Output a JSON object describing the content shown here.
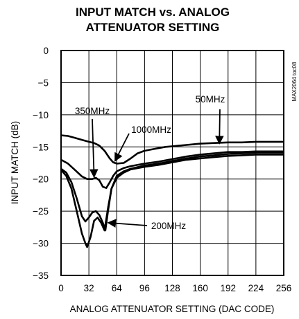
{
  "chart_data": {
    "type": "line",
    "title": [
      "INPUT MATCH vs. ANALOG",
      "ATTENUATOR SETTING"
    ],
    "xlabel": "ANALOG ATTENUATOR SETTING (DAC CODE)",
    "ylabel": "INPUT MATCH (dB)",
    "xlim": [
      0,
      256
    ],
    "ylim": [
      -35,
      0
    ],
    "xticks": [
      0,
      32,
      64,
      96,
      128,
      160,
      192,
      224,
      256
    ],
    "yticks": [
      0,
      -5,
      -10,
      -15,
      -20,
      -25,
      -30,
      -35
    ],
    "grid": true,
    "figure_code": "MAX2064 toc08",
    "series": [
      {
        "name": "50MHz",
        "points": [
          [
            0,
            -13.2
          ],
          [
            8,
            -13.3
          ],
          [
            16,
            -13.6
          ],
          [
            24,
            -13.9
          ],
          [
            32,
            -14.2
          ],
          [
            38,
            -14.4
          ],
          [
            44,
            -14.8
          ],
          [
            50,
            -15.6
          ],
          [
            56,
            -16.8
          ],
          [
            60,
            -17.4
          ],
          [
            64,
            -17.6
          ],
          [
            72,
            -17.5
          ],
          [
            80,
            -16.8
          ],
          [
            88,
            -16.0
          ],
          [
            96,
            -15.6
          ],
          [
            104,
            -15.4
          ],
          [
            112,
            -15.2
          ],
          [
            120,
            -15.0
          ],
          [
            128,
            -14.9
          ],
          [
            136,
            -14.8
          ],
          [
            144,
            -14.7
          ],
          [
            152,
            -14.6
          ],
          [
            160,
            -14.5
          ],
          [
            176,
            -14.4
          ],
          [
            192,
            -14.3
          ],
          [
            208,
            -14.3
          ],
          [
            224,
            -14.2
          ],
          [
            240,
            -14.2
          ],
          [
            256,
            -14.2
          ]
        ]
      },
      {
        "name": "1000MHz",
        "points": [
          [
            0,
            -17.0
          ],
          [
            8,
            -17.6
          ],
          [
            16,
            -18.6
          ],
          [
            24,
            -19.6
          ],
          [
            30,
            -20.0
          ],
          [
            36,
            -20.0
          ],
          [
            40,
            -19.8
          ],
          [
            44,
            -20.2
          ],
          [
            48,
            -21.2
          ],
          [
            52,
            -21.4
          ],
          [
            56,
            -20.5
          ],
          [
            60,
            -19.5
          ],
          [
            64,
            -18.8
          ],
          [
            72,
            -18.3
          ],
          [
            80,
            -18.0
          ],
          [
            96,
            -17.6
          ],
          [
            112,
            -17.3
          ],
          [
            128,
            -16.9
          ],
          [
            144,
            -16.5
          ],
          [
            160,
            -16.2
          ],
          [
            176,
            -16.0
          ],
          [
            192,
            -15.8
          ],
          [
            208,
            -15.8
          ],
          [
            224,
            -15.7
          ],
          [
            240,
            -15.7
          ],
          [
            256,
            -15.7
          ]
        ]
      },
      {
        "name": "350MHz",
        "points": [
          [
            0,
            -18.4
          ],
          [
            6,
            -19.0
          ],
          [
            12,
            -20.5
          ],
          [
            18,
            -23.0
          ],
          [
            24,
            -25.8
          ],
          [
            28,
            -26.6
          ],
          [
            32,
            -26.0
          ],
          [
            36,
            -25.2
          ],
          [
            40,
            -25.0
          ],
          [
            44,
            -25.6
          ],
          [
            48,
            -26.8
          ],
          [
            51,
            -28.0
          ],
          [
            54,
            -25.0
          ],
          [
            58,
            -21.5
          ],
          [
            64,
            -19.5
          ],
          [
            72,
            -18.8
          ],
          [
            80,
            -18.4
          ],
          [
            96,
            -17.9
          ],
          [
            112,
            -17.6
          ],
          [
            128,
            -17.2
          ],
          [
            144,
            -16.8
          ],
          [
            160,
            -16.5
          ],
          [
            176,
            -16.3
          ],
          [
            192,
            -16.1
          ],
          [
            208,
            -16.0
          ],
          [
            224,
            -15.9
          ],
          [
            240,
            -15.9
          ],
          [
            256,
            -15.9
          ]
        ]
      },
      {
        "name": "200MHz",
        "points": [
          [
            0,
            -18.6
          ],
          [
            6,
            -19.5
          ],
          [
            12,
            -21.5
          ],
          [
            18,
            -25.0
          ],
          [
            24,
            -28.5
          ],
          [
            28,
            -30.0
          ],
          [
            30,
            -30.6
          ],
          [
            34,
            -29.0
          ],
          [
            38,
            -26.5
          ],
          [
            42,
            -26.0
          ],
          [
            46,
            -26.8
          ],
          [
            50,
            -28.0
          ],
          [
            54,
            -24.5
          ],
          [
            58,
            -21.5
          ],
          [
            64,
            -19.8
          ],
          [
            72,
            -19.0
          ],
          [
            80,
            -18.5
          ],
          [
            96,
            -18.1
          ],
          [
            112,
            -17.8
          ],
          [
            128,
            -17.4
          ],
          [
            144,
            -17.0
          ],
          [
            160,
            -16.8
          ],
          [
            176,
            -16.6
          ],
          [
            192,
            -16.4
          ],
          [
            208,
            -16.3
          ],
          [
            224,
            -16.2
          ],
          [
            240,
            -16.2
          ],
          [
            256,
            -16.2
          ]
        ]
      }
    ],
    "annotations": [
      {
        "text": "50MHz",
        "series": "50MHz",
        "at": [
          182,
          -14.5
        ]
      },
      {
        "text": "350MHz",
        "series": "350MHz",
        "at": [
          38,
          -19.7
        ]
      },
      {
        "text": "1000MHz",
        "series": "1000MHz",
        "at": [
          62,
          -17.2
        ]
      },
      {
        "text": "200MHz",
        "series": "200MHz",
        "at": [
          54,
          -26.8
        ]
      }
    ]
  }
}
